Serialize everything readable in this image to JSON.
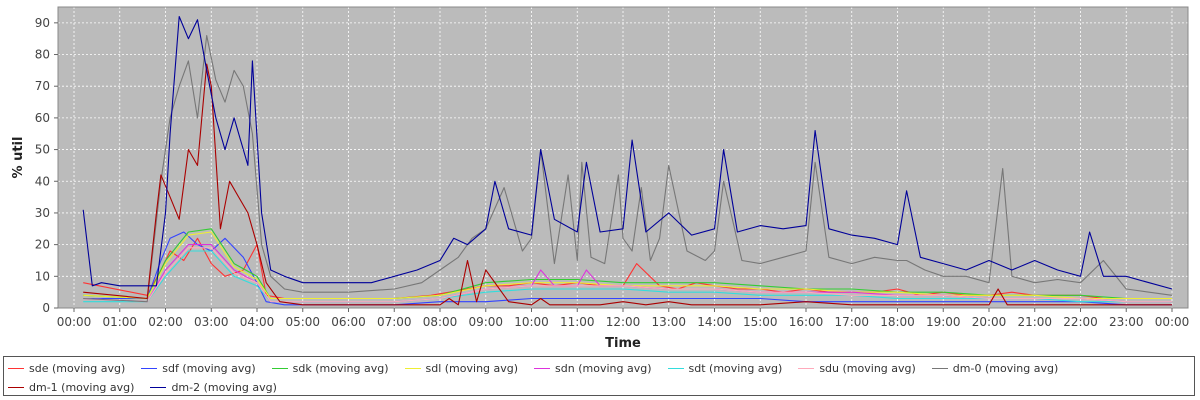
{
  "chart_data": {
    "type": "line",
    "title": "",
    "xlabel": "Time",
    "ylabel": "% util",
    "ylim": [
      0,
      95
    ],
    "yticks": [
      "0",
      "10",
      "20",
      "30",
      "40",
      "50",
      "60",
      "70",
      "80",
      "90"
    ],
    "xticks": [
      "00:00",
      "01:00",
      "02:00",
      "03:00",
      "04:00",
      "05:00",
      "06:00",
      "07:00",
      "08:00",
      "09:00",
      "10:00",
      "11:00",
      "12:00",
      "13:00",
      "14:00",
      "15:00",
      "16:00",
      "17:00",
      "18:00",
      "19:00",
      "20:00",
      "21:00",
      "22:00",
      "23:00",
      "00:00"
    ],
    "xlim_hours": [
      -0.35,
      24.35
    ],
    "grid": true,
    "legend_position": "bottom",
    "plot_background": "#bbbbbb",
    "series": [
      {
        "name": "sde (moving avg)",
        "color": "#ff3333",
        "x": [
          0.2,
          1.6,
          1.9,
          2.1,
          2.4,
          2.7,
          3.0,
          3.3,
          3.7,
          4.0,
          4.2,
          4.6,
          5.0,
          6.0,
          7.0,
          7.8,
          8.2,
          8.6,
          9.0,
          9.5,
          10.0,
          10.5,
          11.0,
          11.5,
          12.0,
          12.3,
          12.8,
          13.2,
          13.6,
          14.0,
          14.5,
          15.0,
          15.5,
          16.0,
          16.5,
          17.0,
          17.5,
          18.0,
          18.5,
          19.0,
          19.5,
          20.0,
          20.5,
          21.0,
          21.5,
          22.0,
          22.5,
          23.0,
          23.5,
          24.0
        ],
        "y": [
          8,
          4,
          12,
          18,
          15,
          22,
          14,
          10,
          12,
          20,
          4,
          3,
          3,
          3,
          3,
          4,
          5,
          6,
          7,
          7,
          8,
          7,
          8,
          7,
          7,
          14,
          7,
          6,
          8,
          7,
          6,
          6,
          5,
          6,
          5,
          5,
          5,
          6,
          4,
          5,
          4,
          4,
          5,
          4,
          4,
          4,
          3,
          3,
          3,
          3
        ]
      },
      {
        "name": "sdf (moving avg)",
        "color": "#3344ff",
        "x": [
          0.2,
          1.6,
          1.9,
          2.1,
          2.4,
          2.7,
          3.0,
          3.3,
          3.7,
          4.0,
          4.2,
          4.6,
          5.0,
          6.0,
          7.0,
          8.0,
          9.0,
          10.0,
          11.0,
          12.0,
          13.0,
          14.0,
          15.0,
          16.0,
          17.0,
          18.0,
          19.0,
          20.0,
          21.0,
          22.0,
          23.0,
          24.0
        ],
        "y": [
          3,
          3,
          15,
          22,
          24,
          20,
          18,
          22,
          16,
          8,
          2,
          1,
          1,
          1,
          1,
          2,
          2,
          3,
          3,
          3,
          3,
          3,
          3,
          2,
          2,
          2,
          2,
          2,
          2,
          2,
          1,
          1
        ]
      },
      {
        "name": "sdk (moving avg)",
        "color": "#33cc33",
        "x": [
          0.2,
          1.6,
          2.0,
          2.5,
          3.0,
          3.5,
          4.0,
          4.3,
          5.0,
          6.0,
          7.0,
          8.0,
          9.0,
          10.0,
          11.0,
          12.0,
          13.0,
          14.0,
          15.0,
          16.0,
          17.0,
          18.0,
          19.0,
          20.0,
          21.0,
          22.0,
          23.0,
          24.0
        ],
        "y": [
          4,
          3,
          15,
          24,
          25,
          14,
          10,
          3,
          3,
          3,
          3,
          4,
          8,
          9,
          9,
          8,
          8,
          8,
          7,
          6,
          6,
          5,
          5,
          4,
          4,
          4,
          3,
          3
        ]
      },
      {
        "name": "sdl (moving avg)",
        "color": "#eeee33",
        "x": [
          0.2,
          1.6,
          2.0,
          2.5,
          3.0,
          3.5,
          4.0,
          4.3,
          5.0,
          6.0,
          7.0,
          8.0,
          9.0,
          10.0,
          11.0,
          12.0,
          13.0,
          14.0,
          15.0,
          16.0,
          17.0,
          18.0,
          19.0,
          20.0,
          21.0,
          22.0,
          23.0,
          24.0
        ],
        "y": [
          4,
          3,
          14,
          23,
          24,
          13,
          9,
          3,
          3,
          3,
          3,
          4,
          7,
          8,
          8,
          7,
          7,
          7,
          6,
          6,
          5,
          5,
          4,
          4,
          4,
          3,
          3,
          3
        ]
      },
      {
        "name": "sdn (moving avg)",
        "color": "#dd33dd",
        "x": [
          0.2,
          1.6,
          2.0,
          2.5,
          3.0,
          3.5,
          4.0,
          4.3,
          5.0,
          6.0,
          7.0,
          8.0,
          9.0,
          10.0,
          10.2,
          10.5,
          11.0,
          11.2,
          11.5,
          12.0,
          13.0,
          14.0,
          15.0,
          16.0,
          17.0,
          18.0,
          19.0,
          20.0,
          21.0,
          22.0,
          23.0,
          24.0
        ],
        "y": [
          3,
          2,
          12,
          20,
          20,
          12,
          8,
          2,
          2,
          2,
          2,
          3,
          6,
          7,
          12,
          7,
          7,
          12,
          7,
          7,
          6,
          6,
          5,
          5,
          5,
          4,
          4,
          3,
          3,
          3,
          2,
          2
        ]
      },
      {
        "name": "sdt (moving avg)",
        "color": "#33dddd",
        "x": [
          0.2,
          1.6,
          2.0,
          2.5,
          3.0,
          3.5,
          4.0,
          4.3,
          5.0,
          6.0,
          7.0,
          8.0,
          9.0,
          10.0,
          11.0,
          12.0,
          13.0,
          14.0,
          15.0,
          16.0,
          17.0,
          18.0,
          19.0,
          20.0,
          21.0,
          22.0,
          23.0,
          24.0
        ],
        "y": [
          2,
          2,
          10,
          18,
          18,
          10,
          7,
          2,
          2,
          2,
          2,
          3,
          5,
          6,
          6,
          6,
          5,
          5,
          4,
          4,
          4,
          3,
          3,
          3,
          3,
          2,
          2,
          2
        ]
      },
      {
        "name": "sdu (moving avg)",
        "color": "#ffaabb",
        "x": [
          0.2,
          1.6,
          2.0,
          2.5,
          3.0,
          3.5,
          4.0,
          4.3,
          5.0,
          6.0,
          7.0,
          8.0,
          9.0,
          10.0,
          11.0,
          12.0,
          13.0,
          14.0,
          15.0,
          16.0,
          17.0,
          18.0,
          19.0,
          20.0,
          21.0,
          22.0,
          23.0,
          24.0
        ],
        "y": [
          3,
          2,
          11,
          19,
          19,
          11,
          8,
          2,
          2,
          2,
          2,
          3,
          6,
          7,
          7,
          7,
          6,
          6,
          5,
          5,
          4,
          4,
          4,
          3,
          3,
          3,
          2,
          2
        ]
      },
      {
        "name": "dm-0 (moving avg)",
        "color": "#777777",
        "x": [
          0.2,
          1.6,
          1.9,
          2.1,
          2.3,
          2.5,
          2.7,
          2.9,
          3.1,
          3.3,
          3.5,
          3.7,
          3.9,
          4.1,
          4.3,
          4.6,
          5.0,
          6.0,
          7.0,
          7.6,
          8.0,
          8.4,
          8.7,
          9.0,
          9.4,
          9.8,
          10.0,
          10.2,
          10.5,
          10.8,
          11.0,
          11.1,
          11.3,
          11.6,
          11.9,
          12.0,
          12.2,
          12.4,
          12.6,
          12.8,
          13.0,
          13.4,
          13.8,
          14.0,
          14.2,
          14.6,
          15.0,
          15.5,
          16.0,
          16.2,
          16.5,
          17.0,
          17.5,
          18.0,
          18.2,
          18.6,
          19.0,
          19.5,
          20.0,
          20.3,
          20.5,
          21.0,
          21.5,
          22.0,
          22.5,
          23.0,
          23.5,
          24.0
        ],
        "y": [
          3,
          2,
          40,
          60,
          70,
          78,
          60,
          86,
          72,
          65,
          75,
          70,
          55,
          20,
          10,
          6,
          5,
          5,
          6,
          8,
          12,
          16,
          22,
          25,
          38,
          18,
          22,
          50,
          14,
          42,
          15,
          46,
          16,
          14,
          42,
          22,
          18,
          38,
          15,
          22,
          45,
          18,
          15,
          18,
          40,
          15,
          14,
          16,
          18,
          46,
          16,
          14,
          16,
          15,
          15,
          12,
          10,
          10,
          8,
          44,
          10,
          8,
          9,
          8,
          15,
          6,
          5,
          4
        ]
      },
      {
        "name": "dm-1 (moving avg)",
        "color": "#aa0000",
        "x": [
          0.2,
          1.6,
          1.8,
          1.9,
          2.1,
          2.3,
          2.5,
          2.7,
          2.9,
          3.0,
          3.2,
          3.4,
          3.6,
          3.8,
          4.0,
          4.2,
          4.5,
          5.0,
          6.0,
          7.0,
          8.0,
          8.2,
          8.4,
          8.6,
          8.8,
          9.0,
          9.5,
          10.0,
          10.2,
          10.4,
          11.0,
          11.5,
          12.0,
          12.5,
          13.0,
          13.5,
          14.0,
          14.5,
          15.0,
          16.0,
          17.0,
          18.0,
          19.0,
          20.0,
          20.2,
          20.4,
          21.0,
          22.0,
          23.0,
          24.0
        ],
        "y": [
          5,
          3,
          30,
          42,
          35,
          28,
          50,
          45,
          77,
          70,
          25,
          40,
          35,
          30,
          20,
          8,
          2,
          1,
          1,
          1,
          1,
          3,
          1,
          15,
          2,
          12,
          2,
          1,
          3,
          1,
          1,
          1,
          2,
          1,
          2,
          1,
          1,
          1,
          1,
          2,
          1,
          1,
          1,
          1,
          6,
          1,
          1,
          1,
          1,
          1
        ]
      },
      {
        "name": "dm-2 (moving avg)",
        "color": "#000099",
        "x": [
          0.2,
          0.4,
          0.6,
          1.0,
          1.5,
          1.8,
          2.0,
          2.1,
          2.3,
          2.5,
          2.7,
          2.9,
          3.1,
          3.3,
          3.5,
          3.8,
          3.9,
          4.1,
          4.3,
          4.6,
          5.0,
          5.5,
          6.0,
          6.5,
          7.0,
          7.5,
          8.0,
          8.3,
          8.6,
          9.0,
          9.2,
          9.5,
          10.0,
          10.2,
          10.5,
          11.0,
          11.2,
          11.5,
          12.0,
          12.2,
          12.5,
          13.0,
          13.5,
          14.0,
          14.2,
          14.5,
          15.0,
          15.5,
          16.0,
          16.2,
          16.5,
          17.0,
          17.5,
          18.0,
          18.2,
          18.5,
          19.0,
          19.5,
          20.0,
          20.5,
          21.0,
          21.5,
          22.0,
          22.2,
          22.5,
          23.0,
          23.5,
          24.0
        ],
        "y": [
          31,
          7,
          8,
          7,
          7,
          7,
          30,
          55,
          92,
          85,
          91,
          75,
          60,
          50,
          60,
          45,
          78,
          30,
          12,
          10,
          8,
          8,
          8,
          8,
          10,
          12,
          15,
          22,
          20,
          25,
          40,
          25,
          23,
          50,
          28,
          24,
          46,
          24,
          25,
          53,
          24,
          30,
          23,
          25,
          50,
          24,
          26,
          25,
          26,
          56,
          25,
          23,
          22,
          20,
          37,
          16,
          14,
          12,
          15,
          12,
          15,
          12,
          10,
          24,
          10,
          10,
          8,
          6
        ]
      }
    ]
  }
}
